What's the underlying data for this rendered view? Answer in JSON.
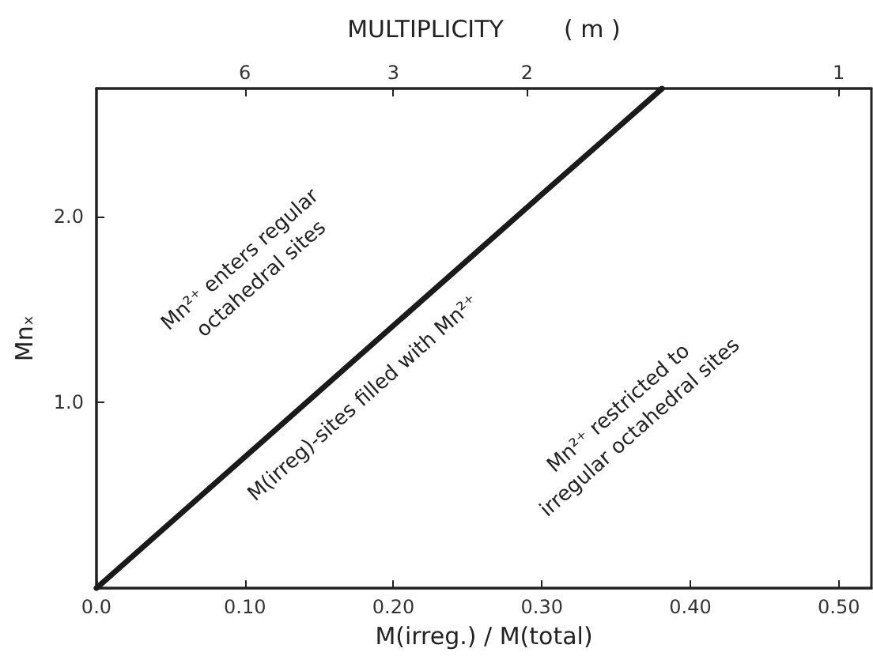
{
  "chart_data": {
    "type": "line",
    "x2label": "MULTIPLICITY        ( m )",
    "xlabel": "M(irreg.) / M(total)",
    "ylabel": "Mnₓ",
    "annotations": [
      "Mn²⁺ enters regular octahedral sites",
      "M(irreg)-sites filled with Mn²⁺",
      "Mn²⁺ restricted to irregular octahedral sites",
      "6",
      "3",
      "2",
      "1"
    ],
    "series": [
      {
        "color": "#1a1a1a",
        "x": [
          0,
          0.075,
          0.3,
          0.381
        ],
        "values": [
          0,
          0.53,
          2.12,
          2.69
        ]
      }
    ],
    "xlim": [
      0,
      0.522
    ],
    "xticks": [
      {
        "value": 0,
        "label": "0.0"
      },
      {
        "value": 0.1,
        "label": "0.10"
      },
      {
        "value": 0.2,
        "label": "0.20"
      },
      {
        "value": 0.3,
        "label": "0.30"
      },
      {
        "value": 0.4,
        "label": "0.40"
      },
      {
        "value": 0.5,
        "label": "0.50"
      }
    ],
    "ylim": [
      0,
      2.69
    ],
    "yticks": [
      {
        "value": 1,
        "label": "1.0"
      },
      {
        "value": 2,
        "label": "2.0"
      }
    ],
    "grid": false,
    "marker": "none",
    "line_style": "solid"
  }
}
